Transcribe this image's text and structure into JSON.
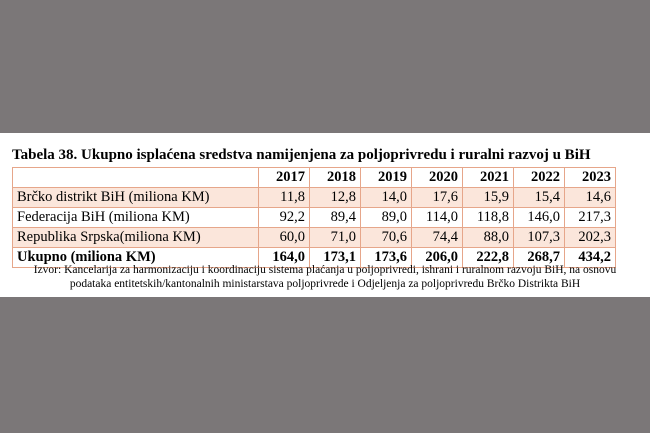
{
  "table": {
    "title": "Tabela 38. Ukupno isplaćena sredstva namijenjena za poljoprivredu i ruralni razvoj u BiH",
    "years": [
      "2017",
      "2018",
      "2019",
      "2020",
      "2021",
      "2022",
      "2023"
    ],
    "rows": [
      {
        "label": "Brčko distrikt BiH (miliona KM)",
        "values": [
          "11,8",
          "12,8",
          "14,0",
          "17,6",
          "15,9",
          "15,4",
          "14,6"
        ]
      },
      {
        "label": "Federacija BiH (miliona KM)",
        "values": [
          "92,2",
          "89,4",
          "89,0",
          "114,0",
          "118,8",
          "146,0",
          "217,3"
        ]
      },
      {
        "label": "Republika Srpska(miliona KM)",
        "values": [
          "60,0",
          "71,0",
          "70,6",
          "74,4",
          "88,0",
          "107,3",
          "202,3"
        ]
      },
      {
        "label": "Ukupno (miliona KM)",
        "values": [
          "164,0",
          "173,1",
          "173,6",
          "206,0",
          "222,8",
          "268,7",
          "434,2"
        ]
      }
    ],
    "source_line1": "Izvor: Kancelarija za harmonizaciju i koordinaciju sistema plaćanja u poljoprivredi, ishrani i ruralnom razvoju BiH, na osnovu",
    "source_line2": "podataka entitetskih/kantonalnih ministarstava poljoprivrede i Odjeljenja za poljoprivredu Brčko Distrikta BiH"
  }
}
